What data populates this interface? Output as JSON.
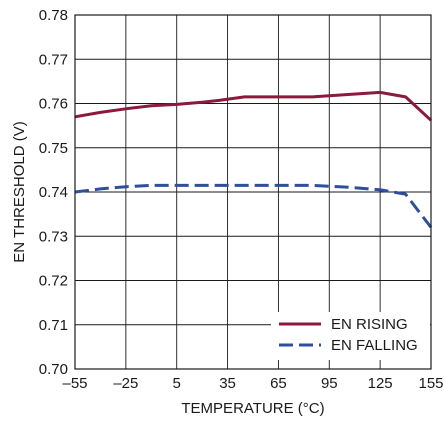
{
  "chart_data": {
    "type": "line",
    "title": "",
    "xlabel": "TEMPERATURE (°C)",
    "ylabel": "EN THRESHOLD (V)",
    "xlim": [
      -55,
      155
    ],
    "ylim": [
      0.7,
      0.78
    ],
    "x_ticks": [
      -55,
      -25,
      5,
      35,
      65,
      95,
      125,
      155
    ],
    "x_tick_labels": [
      "–55",
      "–25",
      "5",
      "35",
      "65",
      "95",
      "125",
      "155"
    ],
    "y_ticks": [
      0.7,
      0.71,
      0.72,
      0.73,
      0.74,
      0.75,
      0.76,
      0.77,
      0.78
    ],
    "y_tick_labels": [
      "0.70",
      "0.71",
      "0.72",
      "0.73",
      "0.74",
      "0.75",
      "0.76",
      "0.77",
      "0.78"
    ],
    "grid": true,
    "legend_position": "bottom-right",
    "series": [
      {
        "name": "EN RISING",
        "color": "#8b1a3c",
        "style": "solid",
        "x": [
          -55,
          -40,
          -25,
          -10,
          5,
          20,
          30,
          45,
          65,
          85,
          105,
          125,
          140,
          155
        ],
        "y": [
          0.757,
          0.758,
          0.7588,
          0.7595,
          0.7598,
          0.7603,
          0.7607,
          0.7615,
          0.7615,
          0.7615,
          0.762,
          0.7625,
          0.7615,
          0.7562
        ]
      },
      {
        "name": "EN FALLING",
        "color": "#2e4e9e",
        "style": "dashed",
        "x": [
          -55,
          -40,
          -25,
          -10,
          5,
          35,
          65,
          85,
          105,
          125,
          140,
          155
        ],
        "y": [
          0.74,
          0.7407,
          0.7412,
          0.7415,
          0.7415,
          0.7415,
          0.7415,
          0.7415,
          0.7411,
          0.7405,
          0.7395,
          0.732
        ]
      }
    ]
  }
}
